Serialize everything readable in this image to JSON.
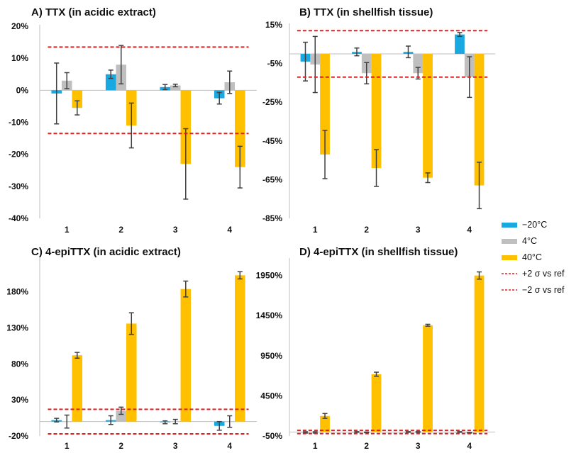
{
  "colors": {
    "minus20": "#19a8df",
    "four": "#bfbfbf",
    "forty": "#ffc000",
    "ref": "#e02020",
    "axis": "#bfbfbf",
    "error": "#404040"
  },
  "legend": {
    "items": [
      {
        "label": "−20°C",
        "kind": "bar",
        "color": "#19a8df"
      },
      {
        "label": "4°C",
        "kind": "bar",
        "color": "#bfbfbf"
      },
      {
        "label": "40°C",
        "kind": "bar",
        "color": "#ffc000"
      },
      {
        "label": "+2 σ vs ref",
        "kind": "dash",
        "color": "#e02020"
      },
      {
        "label": "−2 σ vs ref",
        "kind": "dash",
        "color": "#e02020"
      }
    ]
  },
  "chart_data": [
    {
      "type": "bar",
      "title": "A) TTX (in acidic extract)",
      "categories": [
        "1",
        "2",
        "3",
        "4"
      ],
      "yticks": [
        20,
        10,
        0,
        -10,
        -20,
        -30,
        -40
      ],
      "ytick_labels": [
        "20%",
        "10%",
        "0%",
        "-10%",
        "-20%",
        "-30%",
        "-40%"
      ],
      "ylim": [
        -40,
        20
      ],
      "series": [
        {
          "name": "−20°C",
          "values": [
            -1,
            5,
            1,
            -2.5
          ],
          "errors": [
            9.5,
            1.3,
            0.8,
            1.8
          ]
        },
        {
          "name": "4°C",
          "values": [
            3,
            8,
            1.5,
            2.5
          ],
          "errors": [
            2.5,
            6,
            0.4,
            3.5
          ]
        },
        {
          "name": "40°C",
          "values": [
            -5.5,
            -11,
            -23,
            -24
          ],
          "errors": [
            2.2,
            7,
            11,
            6.5
          ]
        }
      ],
      "ref_lines": [
        13.5,
        -13.5
      ]
    },
    {
      "type": "bar",
      "title": "B) TTX (in shellfish tissue)",
      "categories": [
        "1",
        "2",
        "3",
        "4"
      ],
      "yticks": [
        15,
        -5,
        -25,
        -45,
        -65,
        -85
      ],
      "ytick_labels": [
        "15%",
        "-5%",
        "-25%",
        "-45%",
        "-65%",
        "-85%"
      ],
      "ylim": [
        -85,
        15
      ],
      "series": [
        {
          "name": "−20°C",
          "values": [
            -4,
            1,
            1,
            10
          ],
          "errors": [
            10,
            2,
            3,
            1
          ]
        },
        {
          "name": "4°C",
          "values": [
            -5.5,
            -10,
            -10,
            -12
          ],
          "errors": [
            14.5,
            5.5,
            3,
            10.5
          ]
        },
        {
          "name": "40°C",
          "values": [
            -52,
            -59,
            -64,
            -68
          ],
          "errors": [
            12.5,
            9.5,
            2.5,
            12
          ]
        }
      ],
      "ref_lines": [
        12,
        -12
      ]
    },
    {
      "type": "bar",
      "title": "C) 4-epiTTX (in acidic extract)",
      "categories": [
        "1",
        "2",
        "3",
        "4"
      ],
      "yticks": [
        180,
        130,
        80,
        30,
        -20
      ],
      "ytick_labels": [
        "180%",
        "130%",
        "80%",
        "30%",
        "-20%"
      ],
      "ylim": [
        -20,
        225
      ],
      "series": [
        {
          "name": "−20°C",
          "values": [
            2,
            2,
            -1,
            -6
          ],
          "errors": [
            2.5,
            6,
            2,
            6
          ]
        },
        {
          "name": "4°C",
          "values": [
            0,
            15,
            0,
            0
          ],
          "errors": [
            9,
            5,
            3,
            8
          ]
        },
        {
          "name": "40°C",
          "values": [
            92,
            136,
            184,
            203
          ],
          "errors": [
            4,
            15,
            11,
            5
          ]
        }
      ],
      "ref_lines": [
        17,
        -17
      ]
    },
    {
      "type": "bar",
      "title": "D) 4-epiTTX (in shellfish tissue)",
      "categories": [
        "1",
        "2",
        "3",
        "4"
      ],
      "yticks": [
        1950,
        1450,
        950,
        450,
        -50
      ],
      "ytick_labels": [
        "1950%",
        "1450%",
        "950%",
        "450%",
        "-50%"
      ],
      "ylim": [
        -50,
        2150
      ],
      "series": [
        {
          "name": "−20°C",
          "values": [
            -5,
            0,
            0,
            0
          ],
          "errors": [
            8,
            4,
            4,
            4
          ]
        },
        {
          "name": "4°C",
          "values": [
            -5,
            -5,
            0,
            -10
          ],
          "errors": [
            8,
            4,
            4,
            4
          ]
        },
        {
          "name": "40°C",
          "values": [
            200,
            720,
            1330,
            1950
          ],
          "errors": [
            30,
            25,
            12,
            45
          ]
        }
      ],
      "ref_lines": [
        20,
        -20
      ]
    }
  ]
}
